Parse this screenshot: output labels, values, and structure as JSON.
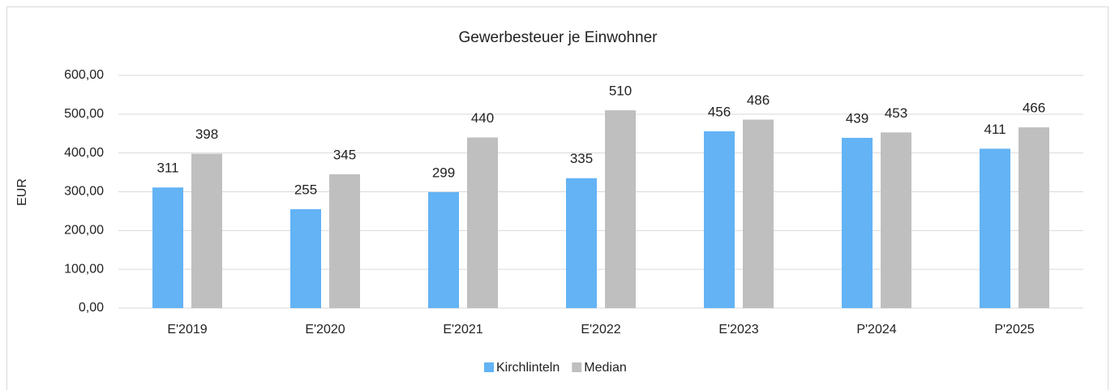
{
  "chart_data": {
    "type": "bar",
    "title": "Gewerbesteuer je Einwohner",
    "y_label": "EUR",
    "categories": [
      "E'2019",
      "E'2020",
      "E'2021",
      "E'2022",
      "E'2023",
      "P'2024",
      "P'2025"
    ],
    "series": [
      {
        "name": "Kirchlinteln",
        "color": "#63b3f5",
        "values": [
          311,
          255,
          299,
          335,
          456,
          439,
          411
        ]
      },
      {
        "name": "Median",
        "color": "#bfbfbf",
        "values": [
          398,
          345,
          440,
          510,
          486,
          453,
          466
        ]
      }
    ],
    "ylim": [
      0,
      600
    ],
    "yticks": [
      {
        "value": 0,
        "label": "0,00"
      },
      {
        "value": 100,
        "label": "100,00"
      },
      {
        "value": 200,
        "label": "200,00"
      },
      {
        "value": 300,
        "label": "300,00"
      },
      {
        "value": 400,
        "label": "400,00"
      },
      {
        "value": 500,
        "label": "500,00"
      },
      {
        "value": 600,
        "label": "600,00"
      }
    ],
    "grid": true,
    "legend": "bottom"
  }
}
